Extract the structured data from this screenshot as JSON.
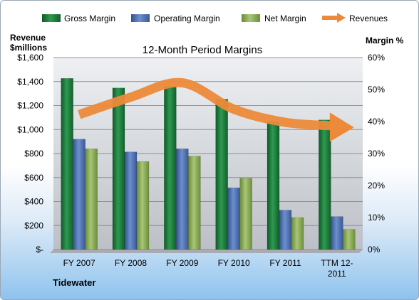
{
  "chart_data": {
    "type": "bar",
    "title": "12-Month Period Margins",
    "left_axis_label": [
      "Revenue",
      "$millions"
    ],
    "right_axis_label": "Margin %",
    "company": "Tidewater",
    "categories": [
      [
        "FY 2007"
      ],
      [
        "FY 2008"
      ],
      [
        "FY 2009"
      ],
      [
        "FY 2010"
      ],
      [
        "FY 2011"
      ],
      [
        "TTM 12-",
        "2011"
      ]
    ],
    "left_ticks": [
      "$-",
      "$200",
      "$400",
      "$600",
      "$800",
      "$1,000",
      "$1,200",
      "$1,400",
      "$1,600"
    ],
    "right_ticks": [
      "0%",
      "10%",
      "20%",
      "30%",
      "40%",
      "50%",
      "60%"
    ],
    "ylim_left": [
      0,
      1600
    ],
    "ylim_right": [
      0,
      60
    ],
    "legend_position": "top",
    "series": [
      {
        "name": "Gross Margin",
        "axis": "right",
        "color": "#1e7a3c",
        "values": [
          53.5,
          50.5,
          51,
          47,
          40,
          40.5
        ]
      },
      {
        "name": "Operating Margin",
        "axis": "right",
        "color": "#4f73b5",
        "values": [
          34.5,
          30.5,
          31.5,
          19.3,
          12.3,
          10.3
        ]
      },
      {
        "name": "Net Margin",
        "axis": "right",
        "color": "#8fb05a",
        "values": [
          31.5,
          27.5,
          29.2,
          22.3,
          10,
          6.3
        ]
      },
      {
        "name": "Revenues",
        "axis": "left",
        "color": "#ed8a3a",
        "type": "line",
        "values": [
          1125,
          1270,
          1390,
          1170,
          1060,
          1030
        ]
      }
    ]
  }
}
